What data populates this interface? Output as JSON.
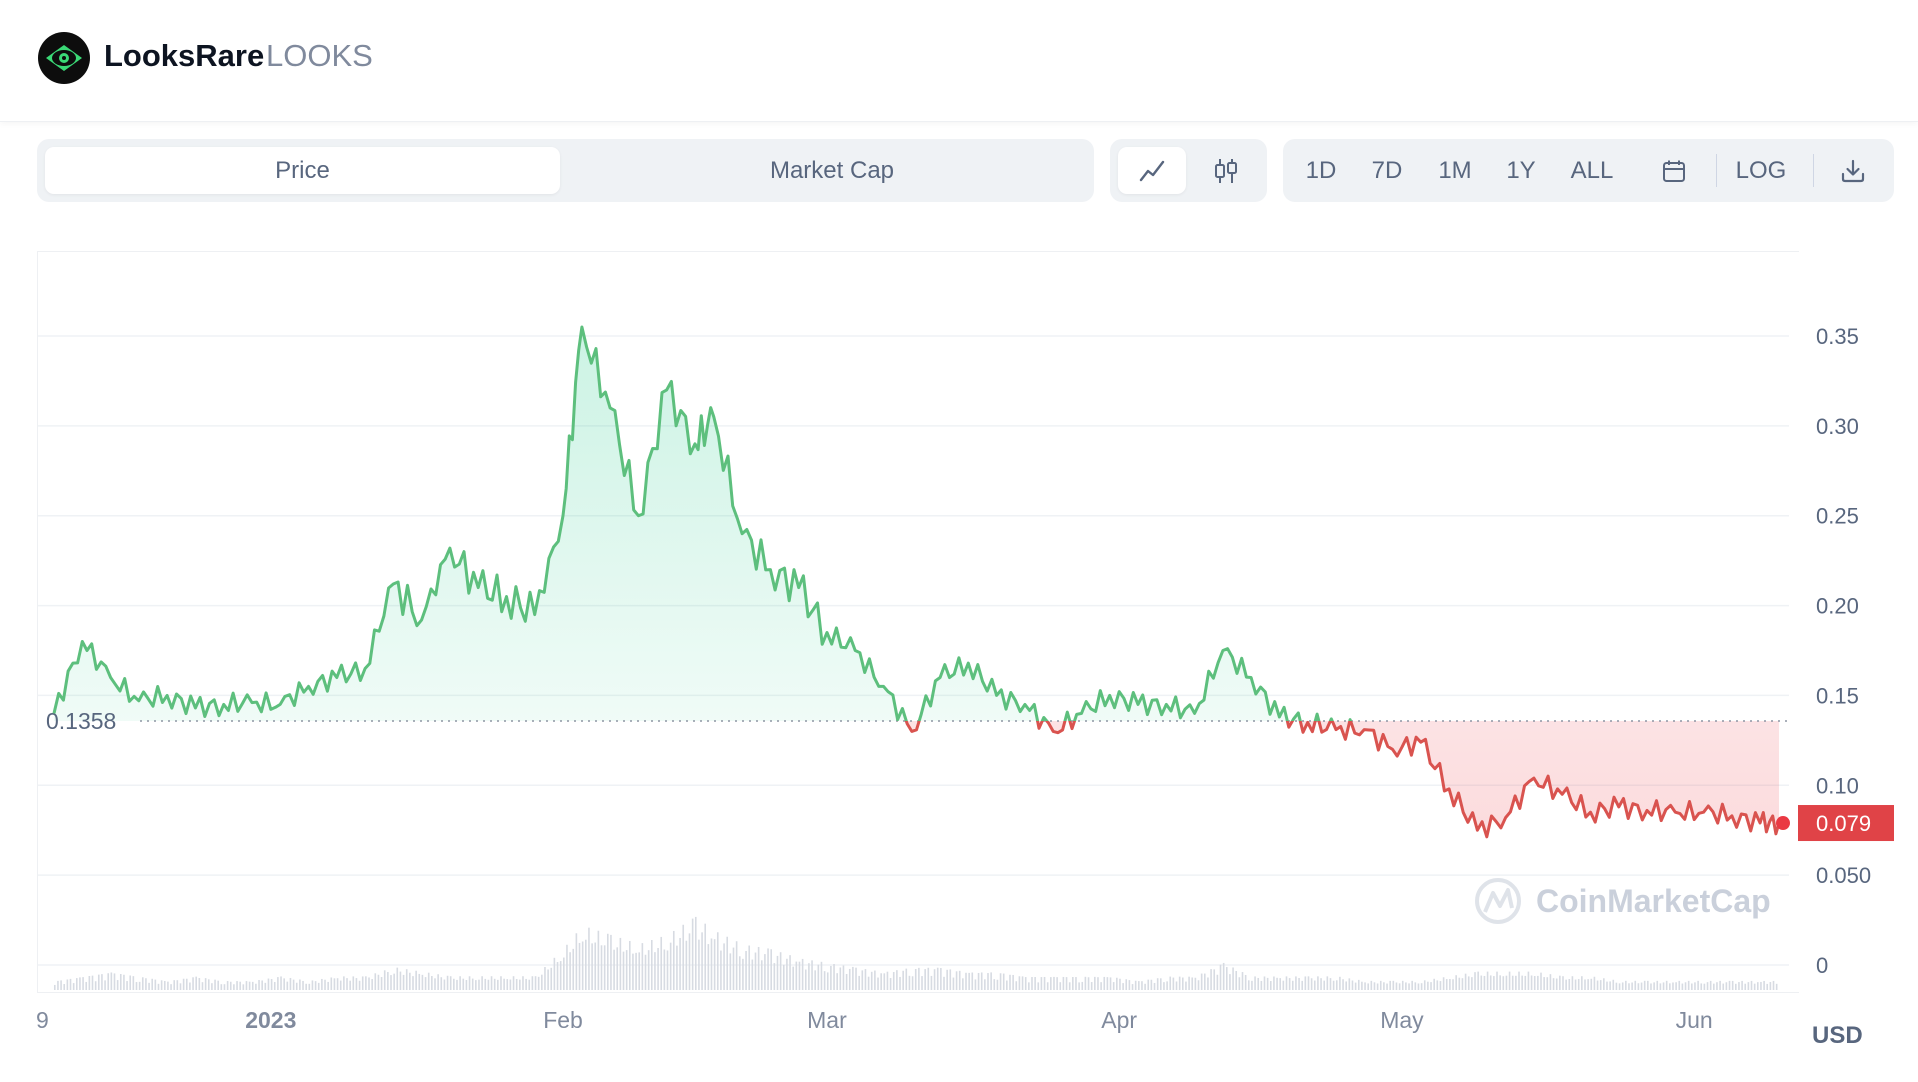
{
  "header": {
    "name": "LooksRare",
    "symbol": "LOOKS",
    "logo_icon": "looksrare-eye-logo-icon"
  },
  "metric_tabs": [
    "Price",
    "Market Cap"
  ],
  "active_metric": "Price",
  "chart_type_buttons": [
    {
      "icon": "line-chart-icon",
      "active": true
    },
    {
      "icon": "candlestick-chart-icon",
      "active": false
    }
  ],
  "ranges": [
    "1D",
    "7D",
    "1M",
    "1Y",
    "ALL"
  ],
  "calendar_icon": "calendar-icon",
  "log_label": "LOG",
  "download_icon": "download-icon",
  "watermark": "CoinMarketCap",
  "currency": "USD",
  "colors": {
    "up": "#16c784",
    "up_line": "#5dbf7d",
    "down": "#ea3943",
    "down_line": "#d9534f",
    "text": "#58667e"
  },
  "chart_data": {
    "type": "line",
    "title": "",
    "xlabel": "",
    "ylabel": "",
    "x_ticks": [
      "9",
      "2023",
      "Feb",
      "Mar",
      "Apr",
      "May",
      "Jun"
    ],
    "y_ticks": [
      "0.35",
      "0.30",
      "0.25",
      "0.20",
      "0.15",
      "0.10",
      "0.050",
      "0"
    ],
    "ylim": [
      0,
      0.35
    ],
    "reference_price": 0.1358,
    "reference_label": "0.1358",
    "last_price": 0.079,
    "last_price_label": "0.079",
    "grid": true,
    "series": [
      {
        "x": [
          "2022-12-09",
          "2022-12-12",
          "2022-12-15",
          "2022-12-18",
          "2022-12-21",
          "2022-12-24",
          "2022-12-27",
          "2022-12-30",
          "2023-01-02",
          "2023-01-05",
          "2023-01-08",
          "2023-01-11",
          "2023-01-14",
          "2023-01-17",
          "2023-01-20",
          "2023-01-23",
          "2023-01-26",
          "2023-01-29",
          "2023-02-01",
          "2023-02-03",
          "2023-02-06",
          "2023-02-09",
          "2023-02-12",
          "2023-02-15",
          "2023-02-17",
          "2023-02-20",
          "2023-02-23",
          "2023-02-26",
          "2023-03-01",
          "2023-03-04",
          "2023-03-07",
          "2023-03-10",
          "2023-03-13",
          "2023-03-16",
          "2023-03-19",
          "2023-03-22",
          "2023-03-25",
          "2023-03-28",
          "2023-03-31",
          "2023-04-03",
          "2023-04-06",
          "2023-04-09",
          "2023-04-12",
          "2023-04-15",
          "2023-04-18",
          "2023-04-21",
          "2023-04-24",
          "2023-04-27",
          "2023-04-30",
          "2023-05-03",
          "2023-05-06",
          "2023-05-09",
          "2023-05-12",
          "2023-05-15",
          "2023-05-18",
          "2023-05-21",
          "2023-05-24",
          "2023-05-27",
          "2023-05-30",
          "2023-06-02",
          "2023-06-05",
          "2023-06-08",
          "2023-06-10"
        ],
        "y": [
          0.14,
          0.18,
          0.16,
          0.147,
          0.15,
          0.143,
          0.145,
          0.146,
          0.145,
          0.155,
          0.16,
          0.165,
          0.212,
          0.192,
          0.232,
          0.21,
          0.205,
          0.195,
          0.25,
          0.355,
          0.31,
          0.25,
          0.32,
          0.29,
          0.305,
          0.24,
          0.22,
          0.21,
          0.185,
          0.175,
          0.155,
          0.13,
          0.16,
          0.168,
          0.15,
          0.145,
          0.13,
          0.14,
          0.15,
          0.145,
          0.145,
          0.14,
          0.175,
          0.16,
          0.138,
          0.135,
          0.131,
          0.131,
          0.12,
          0.124,
          0.098,
          0.075,
          0.082,
          0.104,
          0.095,
          0.085,
          0.088,
          0.086,
          0.085,
          0.085,
          0.083,
          0.079,
          0.079
        ]
      }
    ],
    "volume": [
      2,
      3,
      4,
      3,
      2,
      3,
      2,
      2,
      3,
      2,
      3,
      3,
      5,
      4,
      3,
      3,
      3,
      3,
      9,
      14,
      12,
      10,
      12,
      16,
      13,
      10,
      9,
      7,
      6,
      5,
      4,
      5,
      5,
      4,
      4,
      3,
      3,
      3,
      3,
      2,
      3,
      3,
      6,
      3,
      3,
      3,
      3,
      2,
      2,
      2,
      3,
      4,
      4,
      4,
      3,
      3,
      2,
      2,
      2,
      2,
      2,
      2,
      2
    ]
  }
}
